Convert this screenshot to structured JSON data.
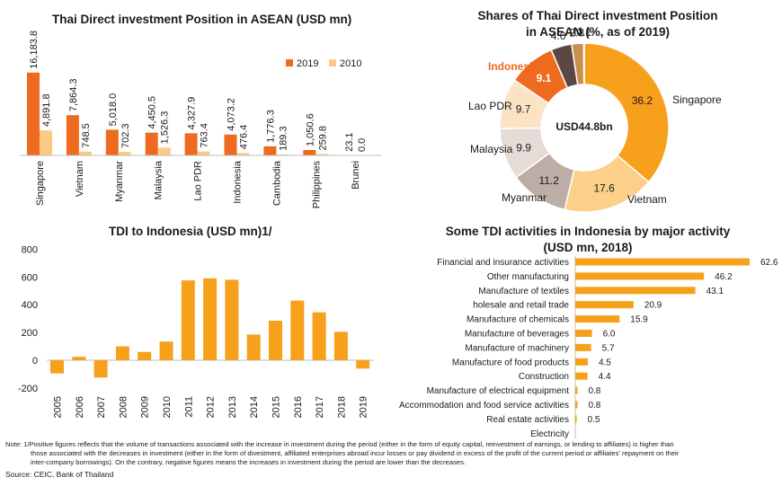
{
  "colors": {
    "c2019": "#ee6a1e",
    "c2010": "#fbcb86",
    "bar": "#f7a01c",
    "axis": "#bfbfbf"
  },
  "chart_data": [
    {
      "type": "bar",
      "title": "Thai Direct investment Position in ASEAN (USD mn)",
      "categories": [
        "Singapore",
        "Vietnam",
        "Myanmar",
        "Malaysia",
        "Lao PDR",
        "Indonesia",
        "Cambodia",
        "Philippines",
        "Brunei"
      ],
      "series": [
        {
          "name": "2019",
          "values": [
            16183.8,
            7864.3,
            5018.0,
            4450.5,
            4327.9,
            4073.2,
            1776.3,
            1050.6,
            23.1
          ],
          "labels": [
            "16,183.8",
            "7,864.3",
            "5,018.0",
            "4,450.5",
            "4,327.9",
            "4,073.2",
            "1,776.3",
            "1,050.6",
            "23.1"
          ]
        },
        {
          "name": "2010",
          "values": [
            4891.8,
            748.5,
            702.3,
            1526.3,
            763.4,
            476.4,
            189.3,
            259.8,
            0.0
          ],
          "labels": [
            "4,891.8",
            "748.5",
            "702.3",
            "1,526.3",
            "763.4",
            "476.4",
            "189.3",
            "259.8",
            "0.0"
          ]
        }
      ],
      "ylim": [
        0,
        16500
      ]
    },
    {
      "type": "pie",
      "title": [
        "Shares of Thai Direct investment Position",
        "in ASEAN (%, as of 2019)"
      ],
      "center_label": "USD44.8bn",
      "slices": [
        {
          "label": "Singapore",
          "value": 36.2,
          "value_label": "36.2",
          "color": "#f7a01c"
        },
        {
          "label": "Vietnam",
          "value": 17.6,
          "value_label": "17.6",
          "color": "#fcd089"
        },
        {
          "label": "Myanmar",
          "value": 11.2,
          "value_label": "11.2",
          "color": "#bcaea6"
        },
        {
          "label": "Malaysia",
          "value": 9.9,
          "value_label": "9.9",
          "color": "#e6dcd7"
        },
        {
          "label": "Lao PDR",
          "value": 9.7,
          "value_label": "9.7",
          "color": "#fbe3c4"
        },
        {
          "label": "Indonesia",
          "value": 9.1,
          "value_label": "9.1",
          "color": "#ee6a1e"
        },
        {
          "label": "",
          "value": 4.0,
          "value_label": "4.0",
          "color": "#5c4842"
        },
        {
          "label": "",
          "value": 2.3,
          "value_label": "2.3",
          "color": "#c98f4e"
        },
        {
          "label": "",
          "value": 0.1,
          "value_label": "0.1",
          "color": "#f0c070"
        }
      ]
    },
    {
      "type": "bar",
      "title": "TDI to Indonesia (USD mn)1/",
      "categories": [
        "2005",
        "2006",
        "2007",
        "2008",
        "2009",
        "2010",
        "2011",
        "2012",
        "2013",
        "2014",
        "2015",
        "2016",
        "2017",
        "2018",
        "2019"
      ],
      "values": [
        -95,
        25,
        -125,
        100,
        60,
        135,
        575,
        590,
        580,
        185,
        285,
        430,
        345,
        205,
        -60
      ],
      "ylim": [
        -200,
        800
      ],
      "yticks": [
        "800",
        "600",
        "400",
        "200",
        "0",
        "-200"
      ]
    },
    {
      "type": "bar",
      "orientation": "horizontal",
      "title": [
        "Some TDI activities in Indonesia by major activity",
        "(USD mn, 2018)"
      ],
      "categories": [
        "Financial and insurance activities",
        "Other manufacturing",
        "Manufacture of textiles",
        "holesale and retail trade",
        "Manufacture of chemicals",
        "Manufacture of beverages",
        "Manufacture of machinery",
        "Manufacture of food products",
        "Construction",
        "Manufacture of electrical equipment",
        "Accommodation and food service activities",
        "Real estate activities",
        "Electricity"
      ],
      "values": [
        62.6,
        46.2,
        43.1,
        20.9,
        15.9,
        6.0,
        5.7,
        4.5,
        4.4,
        0.8,
        0.8,
        0.5,
        0
      ],
      "labels": [
        "62.6",
        "46.2",
        "43.1",
        "20.9",
        "15.9",
        "6.0",
        "5.7",
        "4.5",
        "4.4",
        "0.8",
        "0.8",
        "0.5",
        ""
      ]
    }
  ],
  "note": {
    "line1": "Note: 1/Positive figures reflects that the volume of transactions associated with the increase in investment during the period (either in the form of equity capital, reinvestment of earnings, or lending to affiliates) is higher than",
    "line2": "those associated with the decreases in investment (either in the form of divestment, affiliated enterprises abroad incur losses or pay dividend in excess of the profit of the current period or affiliates' repayment on their",
    "line3": "inter-company borrowings). On the contrary, negative figures means the increases in investment during the period are lower than the decreases."
  },
  "source": "Source: CEIC, Bank of Thailand"
}
